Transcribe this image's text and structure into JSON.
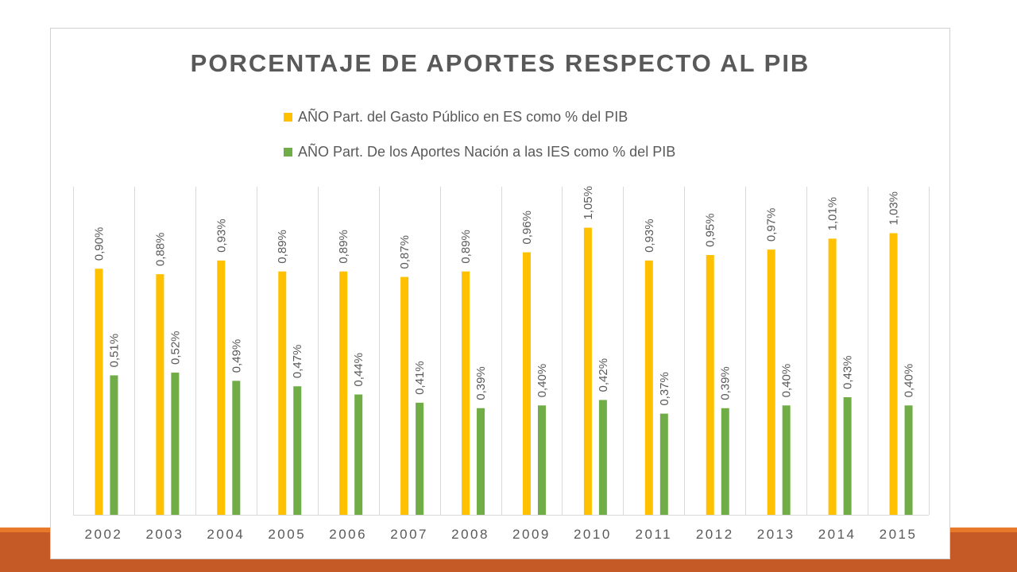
{
  "colors": {
    "series1": "#ffc000",
    "series2": "#70ad47",
    "frame": "#d0d0d0",
    "text": "#595959",
    "band": "#c65a26",
    "band_top": "#e8782a"
  },
  "chart_data": {
    "type": "bar",
    "title": "PORCENTAJE  DE  APORTES  RESPECTO  AL  PIB",
    "xlabel": "",
    "ylabel": "",
    "ylim": [
      0,
      1.2
    ],
    "grid": "vertical category separators",
    "legend_position": "top",
    "categories": [
      "2002",
      "2003",
      "2004",
      "2005",
      "2006",
      "2007",
      "2008",
      "2009",
      "2010",
      "2011",
      "2012",
      "2013",
      "2014",
      "2015"
    ],
    "series": [
      {
        "name": "AÑO Part. del Gasto Público en ES como % del PIB",
        "values": [
          0.9,
          0.88,
          0.93,
          0.89,
          0.89,
          0.87,
          0.89,
          0.96,
          1.05,
          0.93,
          0.95,
          0.97,
          1.01,
          1.03
        ],
        "labels": [
          "0,90%",
          "0,88%",
          "0,93%",
          "0,89%",
          "0,89%",
          "0,87%",
          "0,89%",
          "0,96%",
          "1,05%",
          "0,93%",
          "0,95%",
          "0,97%",
          "1,01%",
          "1,03%"
        ]
      },
      {
        "name": "AÑO Part. De los Aportes Nación a las IES como % del PIB",
        "values": [
          0.51,
          0.52,
          0.49,
          0.47,
          0.44,
          0.41,
          0.39,
          0.4,
          0.42,
          0.37,
          0.39,
          0.4,
          0.43,
          0.4
        ],
        "labels": [
          "0,51%",
          "0,52%",
          "0,49%",
          "0,47%",
          "0,44%",
          "0,41%",
          "0,39%",
          "0,40%",
          "0,42%",
          "0,37%",
          "0,39%",
          "0,40%",
          "0,43%",
          "0,40%"
        ]
      }
    ]
  }
}
